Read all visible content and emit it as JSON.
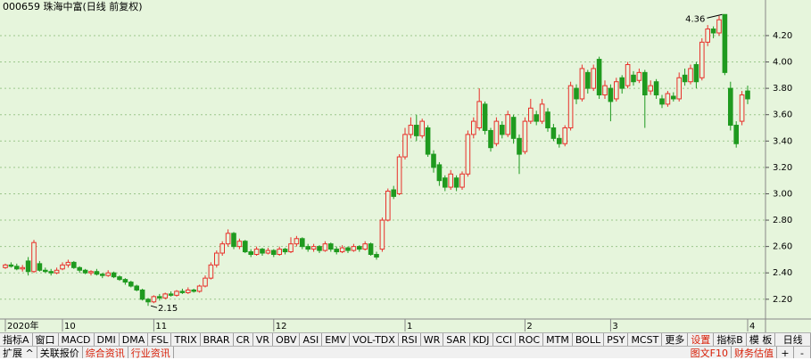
{
  "chart_data": {
    "type": "candlestick",
    "title": "000659 珠海中富(日线 前复权)",
    "categories": [
      "2020年",
      null,
      null,
      null,
      null,
      null,
      null,
      null,
      null,
      null,
      "10",
      null,
      null,
      null,
      null,
      null,
      null,
      null,
      null,
      null,
      null,
      null,
      null,
      null,
      null,
      null,
      "11",
      null,
      null,
      null,
      null,
      null,
      null,
      null,
      null,
      null,
      null,
      null,
      null,
      null,
      null,
      null,
      null,
      null,
      null,
      null,
      null,
      "12",
      null,
      null,
      null,
      null,
      null,
      null,
      null,
      null,
      null,
      null,
      null,
      null,
      null,
      null,
      null,
      null,
      null,
      null,
      null,
      null,
      null,
      null,
      "1",
      null,
      null,
      null,
      null,
      null,
      null,
      null,
      null,
      null,
      null,
      null,
      null,
      null,
      null,
      null,
      null,
      null,
      null,
      null,
      null,
      "2",
      null,
      null,
      null,
      null,
      null,
      null,
      null,
      null,
      null,
      null,
      null,
      null,
      null,
      null,
      "3",
      null,
      null,
      null,
      null,
      null,
      null,
      null,
      null,
      null,
      null,
      null,
      null,
      null,
      null,
      null,
      null,
      null,
      null,
      null,
      null,
      null,
      null,
      null,
      "4"
    ],
    "open": [
      2.44,
      2.46,
      2.45,
      2.43,
      2.49,
      2.41,
      2.47,
      2.42,
      2.41,
      2.4,
      2.43,
      2.46,
      2.48,
      2.44,
      2.42,
      2.4,
      2.41,
      2.39,
      2.38,
      2.4,
      2.37,
      2.35,
      2.33,
      2.3,
      2.27,
      2.2,
      2.18,
      2.22,
      2.21,
      2.24,
      2.23,
      2.26,
      2.25,
      2.27,
      2.26,
      2.3,
      2.36,
      2.46,
      2.55,
      2.62,
      2.7,
      2.6,
      2.64,
      2.56,
      2.54,
      2.58,
      2.55,
      2.57,
      2.54,
      2.58,
      2.56,
      2.62,
      2.66,
      2.6,
      2.58,
      2.6,
      2.57,
      2.62,
      2.58,
      2.56,
      2.59,
      2.57,
      2.6,
      2.58,
      2.62,
      2.54,
      2.58,
      2.8,
      3.03,
      3.0,
      3.28,
      3.45,
      3.52,
      3.44,
      3.5,
      3.3,
      3.22,
      3.12,
      3.05,
      3.12,
      3.05,
      3.15,
      3.45,
      3.5,
      3.68,
      3.48,
      3.38,
      3.52,
      3.45,
      3.58,
      3.42,
      3.32,
      3.55,
      3.6,
      3.55,
      3.62,
      3.5,
      3.42,
      3.38,
      3.5,
      3.8,
      3.72,
      3.92,
      3.8,
      4.02,
      3.75,
      3.8,
      3.72,
      3.88,
      3.82,
      3.9,
      3.86,
      3.92,
      3.78,
      3.85,
      3.72,
      3.68,
      3.74,
      3.72,
      3.9,
      3.85,
      3.98,
      3.88,
      4.15,
      4.25,
      4.22,
      4.36,
      3.8,
      3.52,
      3.55,
      3.78
    ],
    "close": [
      2.46,
      2.45,
      2.43,
      2.44,
      2.41,
      2.63,
      2.42,
      2.41,
      2.4,
      2.42,
      2.46,
      2.48,
      2.44,
      2.42,
      2.4,
      2.41,
      2.39,
      2.38,
      2.4,
      2.37,
      2.35,
      2.33,
      2.3,
      2.27,
      2.2,
      2.18,
      2.22,
      2.21,
      2.24,
      2.23,
      2.26,
      2.25,
      2.27,
      2.26,
      2.3,
      2.36,
      2.46,
      2.55,
      2.62,
      2.7,
      2.6,
      2.64,
      2.56,
      2.54,
      2.58,
      2.55,
      2.57,
      2.54,
      2.58,
      2.56,
      2.62,
      2.66,
      2.6,
      2.58,
      2.6,
      2.57,
      2.62,
      2.58,
      2.56,
      2.59,
      2.57,
      2.6,
      2.58,
      2.62,
      2.54,
      2.52,
      2.8,
      3.02,
      2.98,
      3.28,
      3.45,
      3.52,
      3.44,
      3.55,
      3.3,
      3.2,
      3.1,
      3.05,
      3.15,
      3.05,
      3.15,
      3.45,
      3.55,
      3.7,
      3.48,
      3.35,
      3.55,
      3.45,
      3.6,
      3.42,
      3.3,
      3.55,
      3.65,
      3.55,
      3.68,
      3.5,
      3.42,
      3.38,
      3.5,
      3.82,
      3.72,
      3.95,
      3.8,
      3.95,
      3.75,
      3.82,
      3.7,
      3.85,
      3.8,
      3.98,
      3.85,
      3.92,
      3.75,
      3.82,
      3.75,
      3.68,
      3.76,
      3.72,
      3.88,
      3.85,
      3.95,
      3.85,
      4.15,
      4.25,
      4.22,
      4.32,
      3.92,
      3.52,
      3.38,
      3.75,
      3.72
    ],
    "high": [
      2.47,
      2.48,
      2.47,
      2.46,
      2.52,
      2.65,
      2.49,
      2.44,
      2.43,
      2.44,
      2.48,
      2.5,
      2.49,
      2.45,
      2.43,
      2.42,
      2.43,
      2.4,
      2.42,
      2.41,
      2.38,
      2.36,
      2.34,
      2.31,
      2.28,
      2.21,
      2.23,
      2.24,
      2.25,
      2.26,
      2.27,
      2.28,
      2.29,
      2.28,
      2.31,
      2.38,
      2.48,
      2.57,
      2.64,
      2.73,
      2.71,
      2.66,
      2.65,
      2.58,
      2.6,
      2.59,
      2.59,
      2.58,
      2.6,
      2.59,
      2.67,
      2.68,
      2.67,
      2.62,
      2.62,
      2.61,
      2.64,
      2.63,
      2.6,
      2.61,
      2.6,
      2.62,
      2.61,
      2.64,
      2.63,
      2.56,
      2.82,
      3.04,
      3.06,
      3.3,
      3.5,
      3.58,
      3.6,
      3.57,
      3.52,
      3.33,
      3.24,
      3.14,
      3.18,
      3.14,
      3.17,
      3.48,
      3.58,
      3.8,
      3.7,
      3.5,
      3.58,
      3.55,
      3.63,
      3.6,
      3.45,
      3.58,
      3.72,
      3.63,
      3.72,
      3.65,
      3.53,
      3.45,
      3.52,
      3.85,
      3.83,
      3.98,
      3.94,
      3.98,
      4.04,
      3.86,
      3.83,
      3.88,
      3.9,
      4.0,
      3.93,
      3.95,
      3.94,
      3.86,
      3.87,
      3.75,
      3.78,
      3.77,
      3.92,
      3.95,
      3.98,
      4.0,
      4.18,
      4.28,
      4.27,
      4.35,
      4.36,
      3.85,
      3.55,
      3.78,
      3.82
    ],
    "low": [
      2.43,
      2.44,
      2.42,
      2.41,
      2.38,
      2.4,
      2.41,
      2.4,
      2.38,
      2.39,
      2.42,
      2.44,
      2.43,
      2.4,
      2.39,
      2.38,
      2.38,
      2.36,
      2.37,
      2.36,
      2.34,
      2.31,
      2.29,
      2.26,
      2.19,
      2.15,
      2.17,
      2.19,
      2.2,
      2.22,
      2.22,
      2.24,
      2.24,
      2.25,
      2.25,
      2.29,
      2.35,
      2.44,
      2.53,
      2.6,
      2.58,
      2.58,
      2.55,
      2.52,
      2.53,
      2.53,
      2.54,
      2.52,
      2.53,
      2.54,
      2.55,
      2.6,
      2.58,
      2.56,
      2.56,
      2.55,
      2.56,
      2.56,
      2.54,
      2.55,
      2.55,
      2.56,
      2.56,
      2.57,
      2.53,
      2.5,
      2.56,
      2.79,
      2.96,
      2.99,
      3.26,
      3.42,
      3.4,
      3.42,
      3.28,
      3.16,
      3.06,
      3.02,
      3.03,
      3.02,
      3.03,
      3.13,
      3.42,
      3.48,
      3.45,
      3.32,
      3.36,
      3.42,
      3.43,
      3.38,
      3.15,
      3.3,
      3.53,
      3.52,
      3.53,
      3.47,
      3.4,
      3.35,
      3.36,
      3.48,
      3.68,
      3.7,
      3.76,
      3.78,
      3.72,
      3.72,
      3.55,
      3.7,
      3.76,
      3.8,
      3.82,
      3.84,
      3.5,
      3.75,
      3.72,
      3.65,
      3.66,
      3.7,
      3.7,
      3.82,
      3.83,
      3.8,
      3.86,
      4.12,
      4.18,
      4.2,
      3.9,
      3.48,
      3.35,
      3.52,
      3.68
    ],
    "up_color": "#e8302a",
    "down_color": "#1f9a1f",
    "ylim": [
      2.05,
      4.47
    ],
    "yticks": [
      {
        "value": 2.2,
        "label": "2.20"
      },
      {
        "value": 2.4,
        "label": "2.40"
      },
      {
        "value": 2.6,
        "label": "2.60"
      },
      {
        "value": 2.8,
        "label": "2.80"
      },
      {
        "value": 3.0,
        "label": "3.00"
      },
      {
        "value": 3.2,
        "label": "3.20"
      },
      {
        "value": 3.4,
        "label": "3.40"
      },
      {
        "value": 3.6,
        "label": "3.60"
      },
      {
        "value": 3.8,
        "label": "3.80"
      },
      {
        "value": 4.0,
        "label": "4.00"
      },
      {
        "value": 4.2,
        "label": "4.20"
      }
    ],
    "grid": true,
    "marked_high_index": 126,
    "marked_low_index": 25
  },
  "toolbar": {
    "row1": [
      "指标A",
      "窗口",
      "MACD",
      "DMI",
      "DMA",
      "FSL",
      "TRIX",
      "BRAR",
      "CR",
      "VR",
      "OBV",
      "ASI",
      "EMV",
      "VOL-TDX",
      "RSI",
      "WR",
      "SAR",
      "KDJ",
      "CCI",
      "ROC",
      "MTM",
      "BOLL",
      "PSY",
      "MCST",
      "更多",
      "设置"
    ],
    "row1_right": [
      "指标B",
      "模 板",
      "日线"
    ],
    "row2": [
      "扩展 ^",
      "关联报价",
      "综合资讯",
      "行业资讯"
    ],
    "row2_right": [
      "图文F10",
      "财务估值",
      "+",
      "-"
    ]
  }
}
